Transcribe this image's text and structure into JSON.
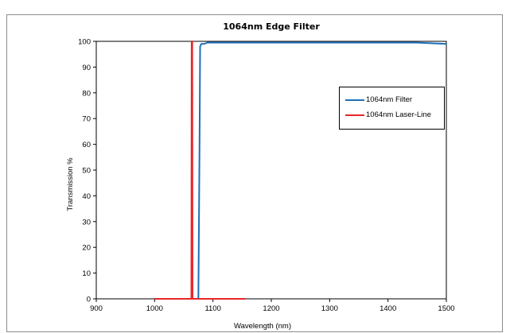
{
  "chart_data": {
    "type": "line",
    "title": "1064nm Edge Filter",
    "xlabel": "Wavelength (nm)",
    "ylabel": "Transmission %",
    "xlim": [
      900,
      1500
    ],
    "ylim": [
      0,
      100
    ],
    "x_ticks": [
      900,
      1000,
      1100,
      1200,
      1300,
      1400,
      1500
    ],
    "y_ticks": [
      0,
      10,
      20,
      30,
      40,
      50,
      60,
      70,
      80,
      90,
      100
    ],
    "grid": false,
    "legend_position": "top-right",
    "series": [
      {
        "name": "1064nm Filter",
        "color": "#1f6fb8",
        "x": [
          1000,
          1072,
          1075,
          1077,
          1078,
          1080,
          1085,
          1090,
          1100,
          1150,
          1200,
          1250,
          1300,
          1350,
          1400,
          1450,
          1500
        ],
        "y": [
          0,
          0,
          0,
          60,
          98,
          99,
          99,
          99.5,
          99.5,
          99.5,
          99.5,
          99.5,
          99.5,
          99.5,
          99.5,
          99.5,
          99
        ]
      },
      {
        "name": "1064nm Laser-Line",
        "color": "#e8262a",
        "x": [
          1000,
          1063,
          1063.5,
          1064,
          1064.5,
          1065,
          1155
        ],
        "y": [
          0,
          0,
          100,
          100,
          100,
          0,
          0
        ]
      }
    ]
  }
}
